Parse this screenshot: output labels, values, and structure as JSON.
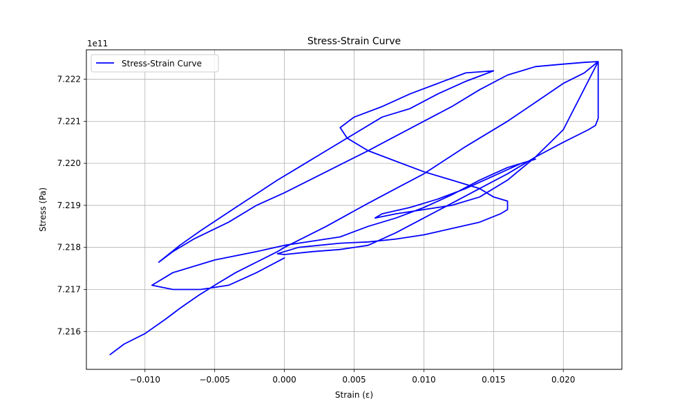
{
  "chart_data": {
    "type": "line",
    "title": "Stress-Strain Curve",
    "xlabel": "Strain (ε)",
    "ylabel": "Stress (Pa)",
    "y_offset_label": "1e11",
    "xlim": [
      -0.0142,
      0.0242
    ],
    "ylim": [
      7.2151,
      7.2227
    ],
    "x_ticks": [
      -0.01,
      -0.005,
      0.0,
      0.005,
      0.01,
      0.015,
      0.02
    ],
    "x_tick_labels": [
      "−0.010",
      "−0.005",
      "0.000",
      "0.005",
      "0.010",
      "0.015",
      "0.020"
    ],
    "y_ticks": [
      7.216,
      7.217,
      7.218,
      7.219,
      7.22,
      7.221,
      7.222
    ],
    "y_tick_labels": [
      "7.216",
      "7.217",
      "7.218",
      "7.219",
      "7.220",
      "7.221",
      "7.222"
    ],
    "grid": true,
    "legend_position": "top-left",
    "color": "#0000ff",
    "series": [
      {
        "name": "Stress-Strain Curve",
        "color": "#0000ff",
        "x": [
          -0.0125,
          -0.0115,
          -0.01,
          -0.0085,
          -0.0075,
          -0.0062,
          -0.005,
          -0.0035,
          -0.002,
          -0.0005,
          0.0,
          0.003,
          0.006,
          0.008,
          0.01,
          0.013,
          0.016,
          0.018,
          0.02,
          0.0215,
          0.0225,
          0.0225,
          0.0223,
          0.0218,
          0.02,
          0.018,
          0.016,
          0.014,
          0.012,
          0.01,
          0.008,
          0.006,
          0.004,
          0.002,
          0.0,
          -0.0005,
          0.001,
          0.004,
          0.006,
          0.008,
          0.01,
          0.012,
          0.014,
          0.0155,
          0.016,
          0.016,
          0.016,
          0.015,
          0.014,
          0.012,
          0.01,
          0.008,
          0.006,
          0.0045,
          0.004,
          0.005,
          0.007,
          0.009,
          0.011,
          0.013,
          0.015,
          0.013,
          0.011,
          0.009,
          0.008,
          0.007,
          0.005,
          0.003,
          0.001,
          -0.0005,
          -0.0035,
          -0.006,
          -0.0075,
          -0.009,
          -0.008,
          -0.0065,
          -0.004,
          -0.002,
          0.0,
          0.003,
          0.006,
          0.008,
          0.01,
          0.012,
          0.014,
          0.016,
          0.018,
          0.02,
          0.0215,
          0.0225,
          0.02,
          0.018,
          0.016,
          0.014,
          0.012,
          0.01,
          0.008,
          0.0065,
          0.007,
          0.009,
          0.011,
          0.013,
          0.015,
          0.017,
          0.018,
          0.016,
          0.014,
          0.012,
          0.01,
          0.008,
          0.006,
          0.004,
          0.002,
          0.0,
          -0.002,
          -0.005,
          -0.008,
          -0.0095,
          -0.008,
          -0.006,
          -0.004,
          -0.002,
          0.0
        ],
        "y": [
          7.21545,
          7.2157,
          7.21595,
          7.2163,
          7.21655,
          7.21685,
          7.2171,
          7.2174,
          7.21765,
          7.2179,
          7.218,
          7.2185,
          7.21905,
          7.2194,
          7.21975,
          7.2204,
          7.221,
          7.22145,
          7.2219,
          7.22215,
          7.22242,
          7.22107,
          7.2209,
          7.2208,
          7.2205,
          7.22015,
          7.21975,
          7.2194,
          7.21905,
          7.2187,
          7.21835,
          7.21805,
          7.21795,
          7.2179,
          7.21783,
          7.21785,
          7.218,
          7.2181,
          7.21813,
          7.2182,
          7.2183,
          7.21845,
          7.2186,
          7.2188,
          7.2189,
          7.219,
          7.2191,
          7.2192,
          7.2194,
          7.2196,
          7.2198,
          7.22005,
          7.2203,
          7.2206,
          7.22085,
          7.2211,
          7.22135,
          7.22165,
          7.2219,
          7.22215,
          7.2222,
          7.22195,
          7.22165,
          7.2213,
          7.2212,
          7.2211,
          7.2207,
          7.2203,
          7.2199,
          7.2196,
          7.21895,
          7.2184,
          7.21805,
          7.21765,
          7.2179,
          7.2182,
          7.2186,
          7.219,
          7.2193,
          7.2198,
          7.2203,
          7.22065,
          7.221,
          7.22135,
          7.22175,
          7.2221,
          7.2223,
          7.22236,
          7.2224,
          7.22242,
          7.2208,
          7.22015,
          7.2196,
          7.2192,
          7.219,
          7.2189,
          7.2188,
          7.2187,
          7.2188,
          7.21895,
          7.21915,
          7.2194,
          7.2197,
          7.22,
          7.2201,
          7.2199,
          7.2196,
          7.21925,
          7.21895,
          7.2187,
          7.2185,
          7.21825,
          7.21815,
          7.21805,
          7.2179,
          7.2177,
          7.2174,
          7.2171,
          7.217,
          7.217,
          7.2171,
          7.2174,
          7.21775
        ]
      }
    ]
  }
}
